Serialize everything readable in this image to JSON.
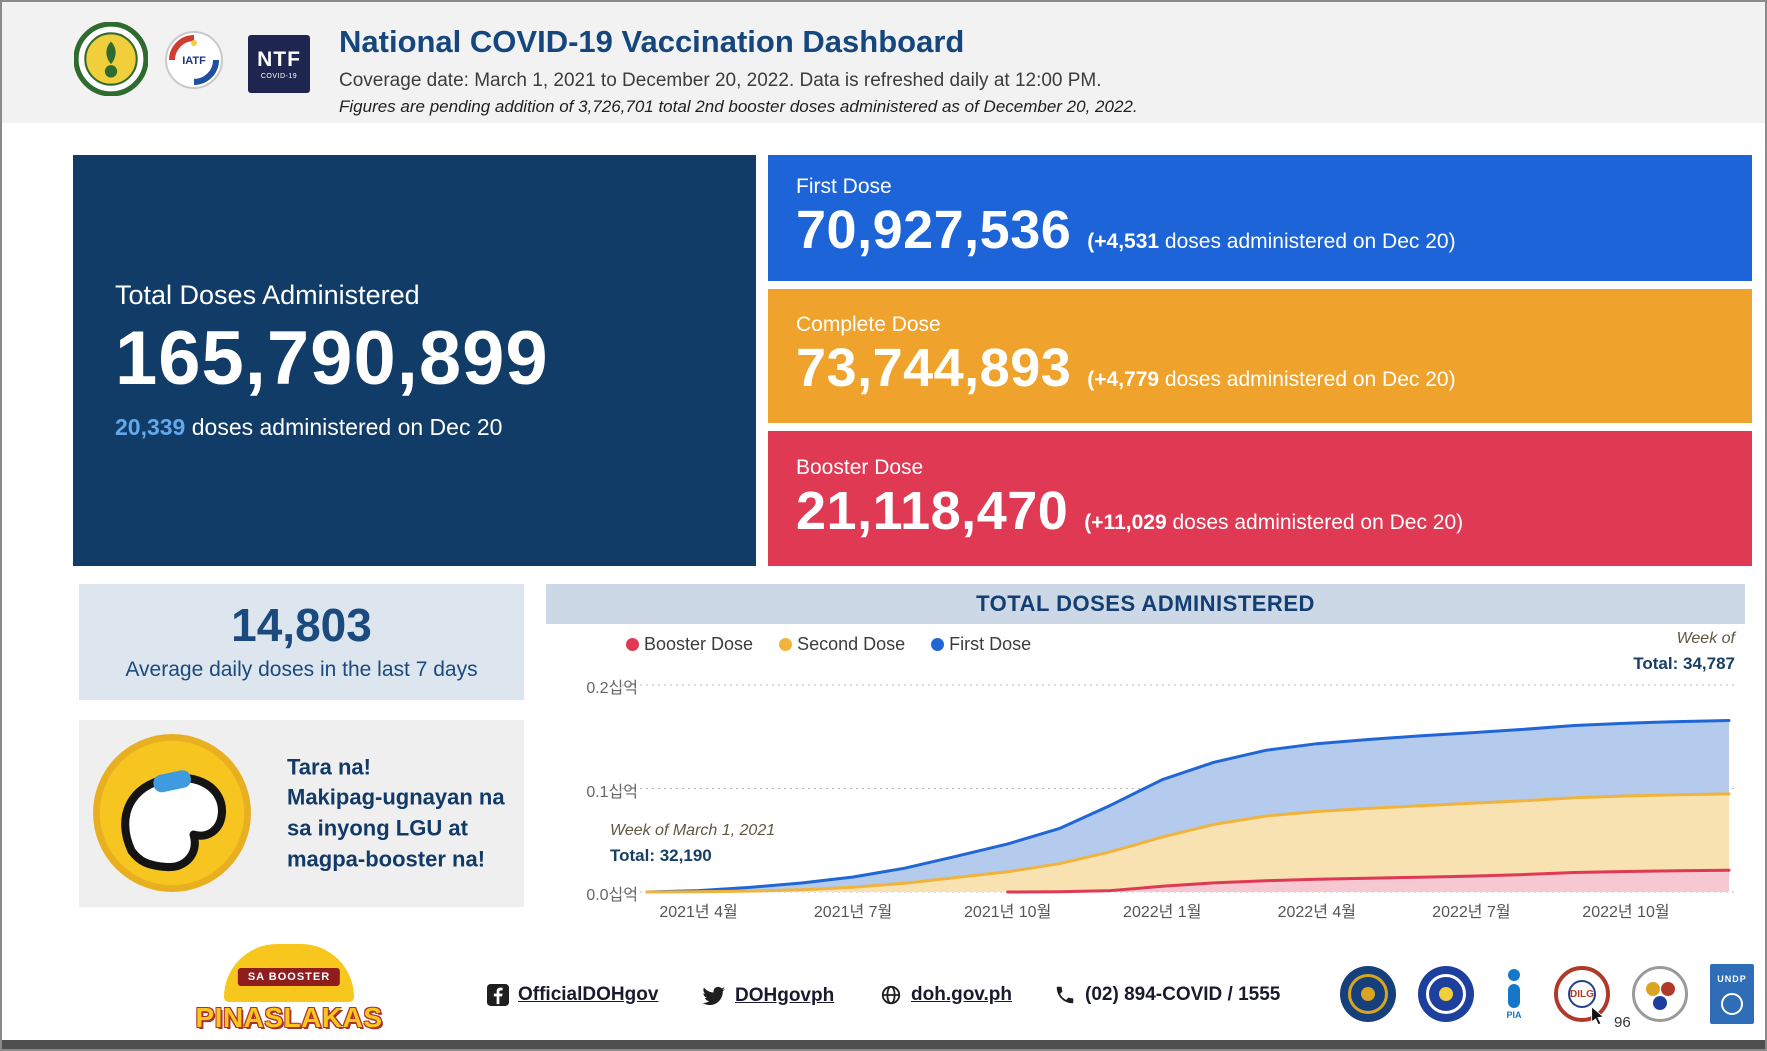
{
  "header": {
    "title": "National COVID-19 Vaccination Dashboard",
    "subtitle": "Coverage date: March 1, 2021 to December 20, 2022. Data is refreshed daily at 12:00 PM.",
    "note": "Figures are pending addition of 3,726,701 total 2nd booster doses administered as of December 20, 2022.",
    "iatf_label": "IATF",
    "ntf_logo": {
      "line1": "NTF",
      "line2": "COVID-19"
    }
  },
  "total_card": {
    "label": "Total Doses Administered",
    "value": "165,790,899",
    "daily_count": "20,339",
    "daily_text": "doses administered on Dec 20"
  },
  "dose_cards": [
    {
      "label": "First Dose",
      "value": "70,927,536",
      "delta": "(+4,531",
      "delta_text": "doses administered on Dec 20)",
      "color": "#1c64d8"
    },
    {
      "label": "Complete Dose",
      "value": "73,744,893",
      "delta": "(+4,779",
      "delta_text": "doses administered on Dec 20)",
      "color": "#efa32d"
    },
    {
      "label": "Booster Dose",
      "value": "21,118,470",
      "delta": "(+11,029",
      "delta_text": "doses administered on Dec 20)",
      "color": "#df3954"
    }
  ],
  "average_card": {
    "value": "14,803",
    "label": "Average daily doses in the last 7 days"
  },
  "cta_card": {
    "lines": [
      "Tara na!",
      "Makipag-ugnayan na",
      "sa inyong LGU at",
      "magpa-booster na!"
    ]
  },
  "chart_data": {
    "type": "area",
    "stacked": true,
    "title": "TOTAL DOSES ADMINISTERED",
    "legend": [
      {
        "label": "Booster Dose",
        "color": "#df3954"
      },
      {
        "label": "Second Dose",
        "color": "#f0b43c"
      },
      {
        "label": "First Dose",
        "color": "#2166d6"
      }
    ],
    "fill_colors": {
      "First Dose": "#b4cbed",
      "Second Dose": "#f8e2b2",
      "Booster Dose": "#f6c9d2"
    },
    "stack_order_bottom_to_top": [
      "Booster Dose",
      "Second Dose",
      "First Dose"
    ],
    "x_months": [
      "2021-03",
      "2021-04",
      "2021-05",
      "2021-06",
      "2021-07",
      "2021-08",
      "2021-09",
      "2021-10",
      "2021-11",
      "2021-12",
      "2022-01",
      "2022-02",
      "2022-03",
      "2022-04",
      "2022-05",
      "2022-06",
      "2022-07",
      "2022-08",
      "2022-09",
      "2022-10",
      "2022-11",
      "2022-12"
    ],
    "series": [
      {
        "name": "First Dose",
        "values_millions": [
          0.03,
          1.2,
          3.5,
          6.5,
          10,
          14.5,
          20.5,
          27,
          34,
          45,
          55.5,
          60,
          63.5,
          65.5,
          66.5,
          67.5,
          68.2,
          69,
          69.8,
          70.3,
          70.6,
          70.9
        ]
      },
      {
        "name": "Second Dose",
        "values_millions": [
          0,
          0.15,
          0.9,
          2.2,
          4.5,
          8.5,
          14,
          19.5,
          27,
          37.5,
          47.5,
          56.5,
          62.5,
          65.5,
          67.5,
          69,
          70.3,
          71.3,
          72.3,
          73,
          73.4,
          73.7
        ]
      },
      {
        "name": "Booster Dose",
        "values_millions": [
          0,
          0,
          0,
          0,
          0,
          0,
          0,
          0,
          0.3,
          1.4,
          5.5,
          8.8,
          10.8,
          12.3,
          13.3,
          14.3,
          15.4,
          16.8,
          18.8,
          19.8,
          20.6,
          21.1
        ]
      }
    ],
    "ylim_billions": [
      0,
      0.2
    ],
    "y_ticks": [
      {
        "value_billions": 0.0,
        "label": "0.0십억"
      },
      {
        "value_billions": 0.1,
        "label": "0.1십억"
      },
      {
        "value_billions": 0.2,
        "label": "0.2십억"
      }
    ],
    "x_ticks": [
      {
        "month_index": 1,
        "label": "2021년 4월"
      },
      {
        "month_index": 4,
        "label": "2021년 7월"
      },
      {
        "month_index": 7,
        "label": "2021년 10월"
      },
      {
        "month_index": 10,
        "label": "2022년 1월"
      },
      {
        "month_index": 13,
        "label": "2022년 4월"
      },
      {
        "month_index": 16,
        "label": "2022년 7월"
      },
      {
        "month_index": 19,
        "label": "2022년 10월"
      }
    ],
    "annotations": [
      {
        "line1": "Week of March 1, 2021",
        "line2": "Total: 32,190",
        "position": "bottom-left"
      },
      {
        "line1": "Week of",
        "line2": "Total: 34,787",
        "position": "top-right"
      }
    ],
    "grid": "dotted-horizontal"
  },
  "footer": {
    "campaign": {
      "banner": "SA BOOSTER",
      "name": "PINASLAKAS"
    },
    "links": [
      {
        "icon": "facebook-icon",
        "label": "OfficialDOHgov"
      },
      {
        "icon": "twitter-icon",
        "label": "DOHgovph"
      },
      {
        "icon": "globe-icon",
        "label": "doh.gov.ph"
      },
      {
        "icon": "phone-icon",
        "label": "(02) 894-COVID / 1555"
      }
    ],
    "pia_label": "PIA",
    "dilg_label": "DILG",
    "undp_label": "UNDP"
  },
  "statusbar": {
    "zoom_text": "96"
  }
}
